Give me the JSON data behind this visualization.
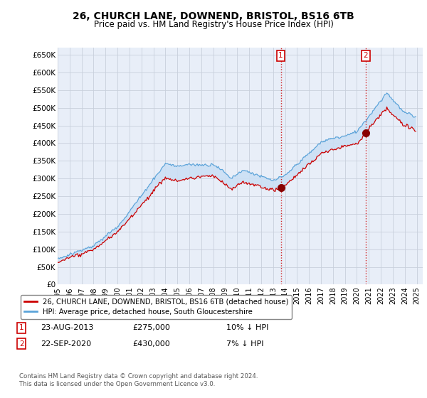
{
  "title": "26, CHURCH LANE, DOWNEND, BRISTOL, BS16 6TB",
  "subtitle": "Price paid vs. HM Land Registry's House Price Index (HPI)",
  "ylim": [
    0,
    670000
  ],
  "yticks": [
    0,
    50000,
    100000,
    150000,
    200000,
    250000,
    300000,
    350000,
    400000,
    450000,
    500000,
    550000,
    600000,
    650000
  ],
  "ytick_labels": [
    "£0",
    "£50K",
    "£100K",
    "£150K",
    "£200K",
    "£250K",
    "£300K",
    "£350K",
    "£400K",
    "£450K",
    "£500K",
    "£550K",
    "£600K",
    "£650K"
  ],
  "hpi_color": "#5ba3d9",
  "price_color": "#cc0000",
  "fill_color": "#cce0f5",
  "sale1_date": 2013.64,
  "sale1_price": 275000,
  "sale2_date": 2020.72,
  "sale2_price": 430000,
  "legend_label1": "26, CHURCH LANE, DOWNEND, BRISTOL, BS16 6TB (detached house)",
  "legend_label2": "HPI: Average price, detached house, South Gloucestershire",
  "annotation1_date": "23-AUG-2013",
  "annotation1_price": "£275,000",
  "annotation1_note": "10% ↓ HPI",
  "annotation2_date": "22-SEP-2020",
  "annotation2_price": "£430,000",
  "annotation2_note": "7% ↓ HPI",
  "footer": "Contains HM Land Registry data © Crown copyright and database right 2024.\nThis data is licensed under the Open Government Licence v3.0.",
  "background_color": "#ffffff",
  "plot_bg_color": "#e8eef8",
  "grid_color": "#c8d0dc"
}
